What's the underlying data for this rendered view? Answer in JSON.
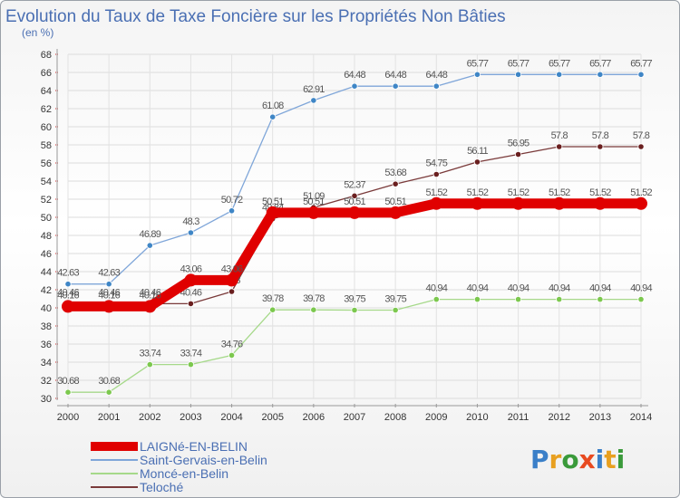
{
  "chart_data": {
    "type": "line",
    "title": "Evolution du Taux de Taxe Foncière sur les Propriétés Non Bâties",
    "subtitle": "(en %)",
    "xlabel": "",
    "ylabel": "",
    "ylim": [
      30,
      68
    ],
    "ytick_step": 2,
    "categories": [
      "2000",
      "2001",
      "2002",
      "2003",
      "2004",
      "2005",
      "2006",
      "2007",
      "2008",
      "2009",
      "2010",
      "2011",
      "2012",
      "2013",
      "2014"
    ],
    "series": [
      {
        "name": "Saint-Gervais-en-Belin",
        "color": "#7fa6d9",
        "marker": "#3f86c6",
        "labels": [
          "42.63",
          "42.63",
          "46.89",
          "48.3",
          "50.72",
          "61.08",
          "62.91",
          "64.48",
          "64.48",
          "64.48",
          "65.77",
          "65.77",
          "65.77",
          "65.77",
          "65.77"
        ],
        "values": [
          42.63,
          42.63,
          46.89,
          48.3,
          50.72,
          61.08,
          62.91,
          64.48,
          64.48,
          64.48,
          65.77,
          65.77,
          65.77,
          65.77,
          65.77
        ]
      },
      {
        "name": "Teloché",
        "color": "#7a3a3a",
        "marker": "#6a1f1f",
        "labels": [
          "40.46",
          "40.46",
          "40.46",
          "40.46",
          "41.8",
          "49.84",
          "51.09",
          "52.37",
          "53.68",
          "54.75",
          "56.11",
          "56.95",
          "57.8",
          "57.8",
          "57.8"
        ],
        "values": [
          40.46,
          40.46,
          40.46,
          40.46,
          41.8,
          49.84,
          51.09,
          52.37,
          53.68,
          54.75,
          56.11,
          56.95,
          57.8,
          57.8,
          57.8
        ]
      },
      {
        "name": "Moncé-en-Belin",
        "color": "#a6d98a",
        "marker": "#7cc84e",
        "labels": [
          "30.68",
          "30.68",
          "33.74",
          "33.74",
          "34.76",
          "39.78",
          "39.78",
          "39.75",
          "39.75",
          "40.94",
          "40.94",
          "40.94",
          "40.94",
          "40.94",
          "40.94"
        ],
        "values": [
          30.68,
          30.68,
          33.74,
          33.74,
          34.76,
          39.78,
          39.78,
          39.75,
          39.75,
          40.94,
          40.94,
          40.94,
          40.94,
          40.94,
          40.94
        ]
      },
      {
        "name": "LAIGNé-EN-BELIN",
        "color": "#e00000",
        "marker": "#e00000",
        "labels": [
          "40.16",
          "40.16",
          "40.16",
          "43.06",
          "43.06",
          "50.51",
          "50.51",
          "50.51",
          "50.51",
          "51.52",
          "51.52",
          "51.52",
          "51.52",
          "51.52",
          "51.52"
        ],
        "values": [
          40.16,
          40.16,
          40.16,
          43.06,
          43.06,
          50.51,
          50.51,
          50.51,
          50.51,
          51.52,
          51.52,
          51.52,
          51.52,
          51.52,
          51.52
        ]
      }
    ],
    "legend": [
      {
        "name": "LAIGNé-EN-BELIN",
        "color": "#e00000",
        "thick": true
      },
      {
        "name": "Saint-Gervais-en-Belin",
        "color": "#7fa6d9",
        "thick": false
      },
      {
        "name": "Moncé-en-Belin",
        "color": "#a6d98a",
        "thick": false
      },
      {
        "name": "Teloché",
        "color": "#7a3a3a",
        "thick": false
      }
    ],
    "legend_placement": "bottom-left"
  },
  "logo": {
    "text": "Proxiti"
  }
}
